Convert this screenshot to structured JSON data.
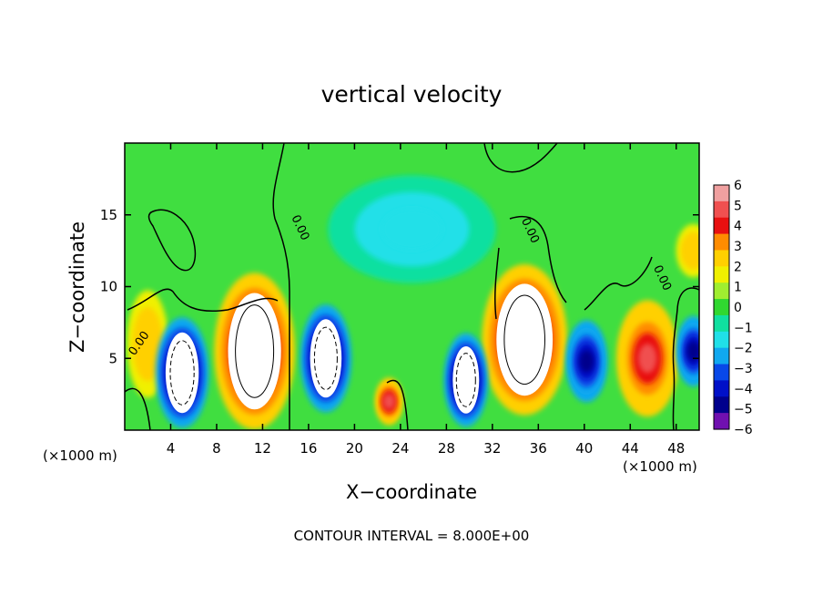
{
  "chart_data": {
    "type": "heatmap",
    "title": "vertical velocity",
    "xlabel": "X−coordinate",
    "ylabel": "Z−coordinate",
    "x_unit": "(×1000 m)",
    "footer": "CONTOUR INTERVAL = 8.000E+00",
    "x_ticks": [
      "4",
      "8",
      "12",
      "16",
      "20",
      "24",
      "28",
      "32",
      "36",
      "40",
      "44",
      "48"
    ],
    "y_ticks": [
      "5",
      "10",
      "15"
    ],
    "xlim": [
      0,
      50
    ],
    "ylim": [
      0,
      20
    ],
    "colorbar": {
      "labels": [
        "6",
        "5",
        "4",
        "3",
        "2",
        "1",
        "0",
        "−1",
        "−2",
        "−3",
        "−4",
        "−5",
        "−6"
      ],
      "range": [
        -6,
        6
      ],
      "colors": [
        "#f0a0a0",
        "#f05050",
        "#e81010",
        "#ff8c00",
        "#ffd000",
        "#f0f000",
        "#a0ee30",
        "#30d830",
        "#10e0a0",
        "#20e0e8",
        "#10a8f0",
        "#0848e8",
        "#0010c8",
        "#00008c",
        "#7010b0"
      ]
    },
    "contour_labels": [
      "0.00",
      "0.00",
      "0.00",
      "0.00"
    ],
    "features": [
      {
        "kind": "updraft",
        "x": 11.3,
        "z": 5.5,
        "peak": 6
      },
      {
        "kind": "updraft",
        "x": 34.8,
        "z": 6.3,
        "peak": 6
      },
      {
        "kind": "updraft",
        "x": 23.0,
        "z": 2.0,
        "peak": 5
      },
      {
        "kind": "updraft",
        "x": 45.5,
        "z": 5.0,
        "peak": 5
      },
      {
        "kind": "updraft",
        "x": 2.0,
        "z": 6.0,
        "peak": 3
      },
      {
        "kind": "updraft",
        "x": 49.5,
        "z": 12.5,
        "peak": 3
      },
      {
        "kind": "downdraft",
        "x": 5.0,
        "z": 4.0,
        "peak": -6
      },
      {
        "kind": "downdraft",
        "x": 17.5,
        "z": 5.0,
        "peak": -6
      },
      {
        "kind": "downdraft",
        "x": 29.7,
        "z": 3.5,
        "peak": -6
      },
      {
        "kind": "downdraft",
        "x": 40.2,
        "z": 4.8,
        "peak": -5
      },
      {
        "kind": "downdraft",
        "x": 49.5,
        "z": 5.5,
        "peak": -5
      },
      {
        "kind": "downdraft",
        "x": 25.0,
        "z": 14.0,
        "peak": -2
      }
    ]
  }
}
